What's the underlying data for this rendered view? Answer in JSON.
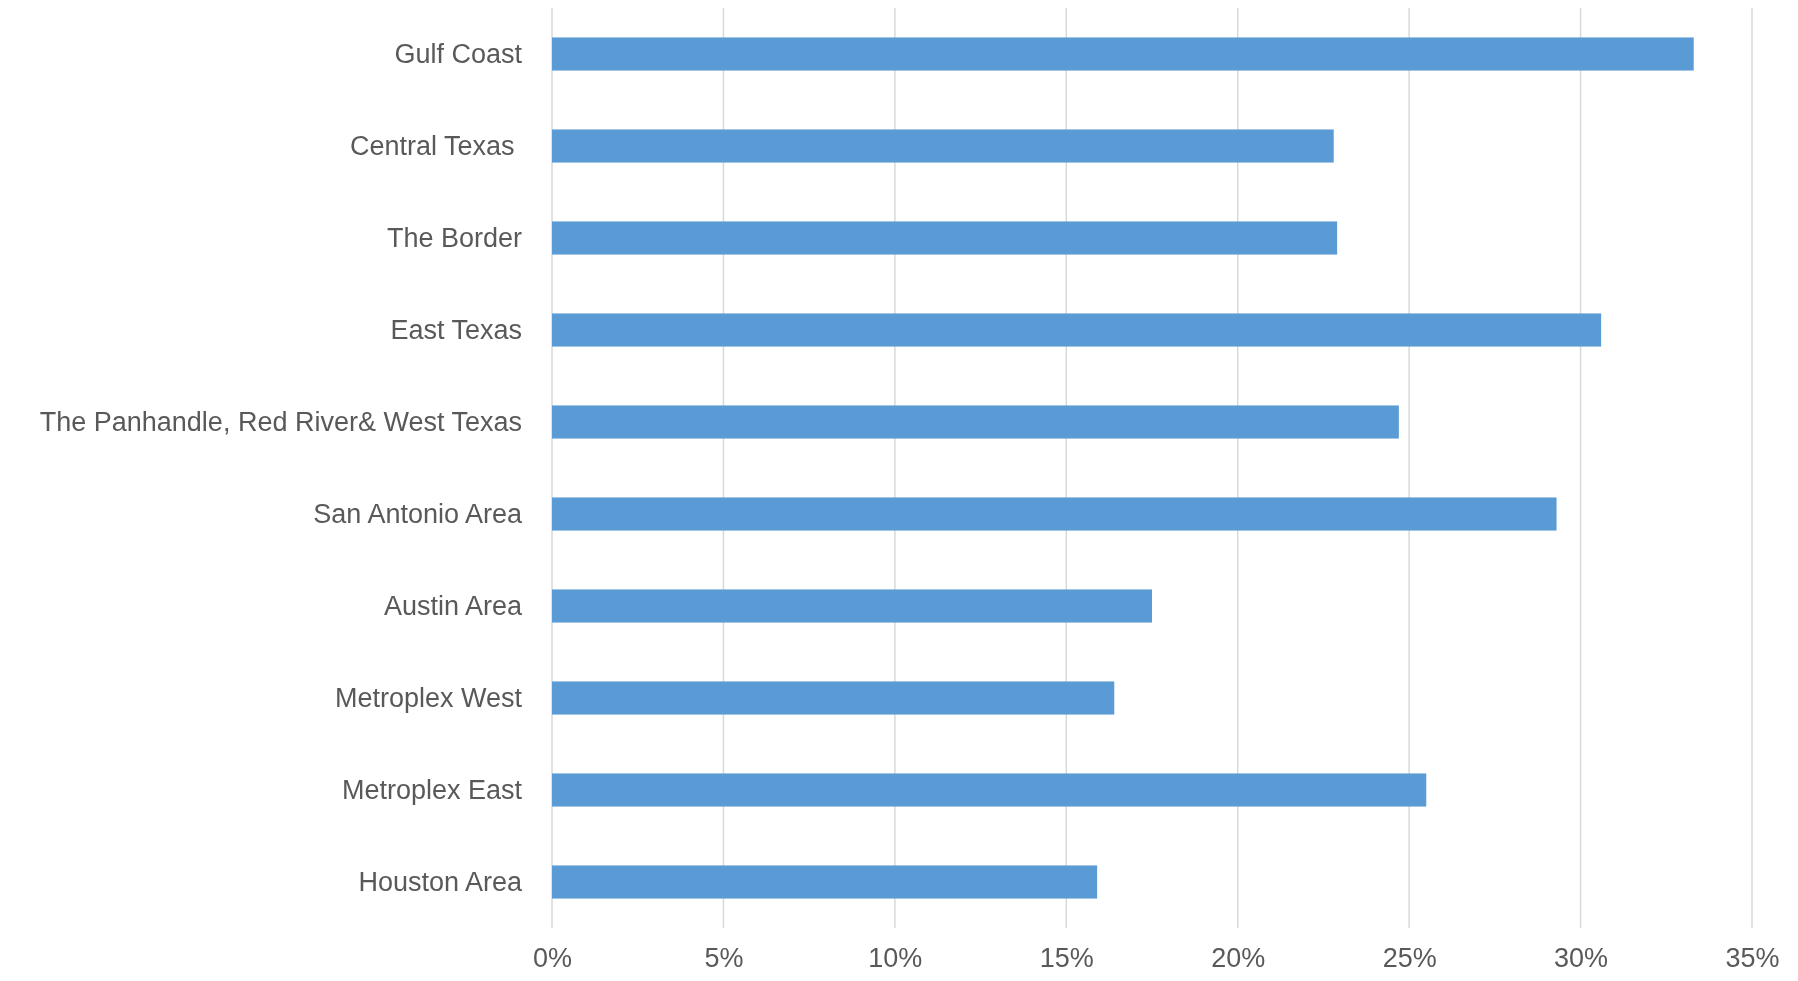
{
  "chart_data": {
    "type": "bar",
    "orientation": "horizontal",
    "categories": [
      "Gulf Coast",
      "Central Texas ",
      "The Border",
      "East Texas",
      "The Panhandle, Red River& West Texas",
      "San Antonio Area",
      "Austin Area",
      "Metroplex West",
      "Metroplex East",
      "Houston Area"
    ],
    "values": [
      33.3,
      22.8,
      22.9,
      30.6,
      24.7,
      29.3,
      17.5,
      16.4,
      25.5,
      15.9
    ],
    "color": "#5b9bd5",
    "xlim": [
      0,
      35
    ],
    "xticks": [
      {
        "value": 0,
        "label": "0%"
      },
      {
        "value": 5,
        "label": "5%"
      },
      {
        "value": 10,
        "label": "10%"
      },
      {
        "value": 15,
        "label": "15%"
      },
      {
        "value": 20,
        "label": "20%"
      },
      {
        "value": 25,
        "label": "25%"
      },
      {
        "value": 30,
        "label": "30%"
      },
      {
        "value": 35,
        "label": "35%"
      }
    ],
    "grid": "x"
  }
}
